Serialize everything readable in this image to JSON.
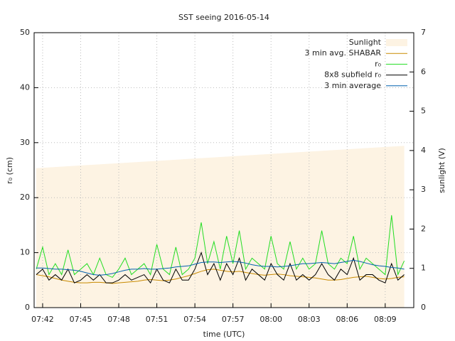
{
  "chart_data": {
    "type": "line",
    "title": "SST seeing 2016-05-14",
    "x_label": "time (UTC)",
    "y_label": "r₀ (cm)",
    "y2_label": "sunlight (V)",
    "xlim": [
      461.33,
      491.25
    ],
    "xticks": [
      {
        "value": 462,
        "label": "07:42"
      },
      {
        "value": 465,
        "label": "07:45"
      },
      {
        "value": 468,
        "label": "07:48"
      },
      {
        "value": 471,
        "label": "07:51"
      },
      {
        "value": 474,
        "label": "07:54"
      },
      {
        "value": 477,
        "label": "07:57"
      },
      {
        "value": 480,
        "label": "08:00"
      },
      {
        "value": 483,
        "label": "08:03"
      },
      {
        "value": 486,
        "label": "08:06"
      },
      {
        "value": 489,
        "label": "08:09"
      }
    ],
    "ylim": [
      0,
      50
    ],
    "yticks": [
      0,
      10,
      20,
      30,
      40,
      50
    ],
    "y2lim": [
      0,
      7
    ],
    "y2ticks": [
      0,
      1,
      2,
      3,
      4,
      5,
      6,
      7
    ],
    "grid": true,
    "legend": "top-right",
    "x": [
      461.5,
      462,
      462.5,
      463,
      463.5,
      464,
      464.5,
      465,
      465.5,
      466,
      466.5,
      467,
      467.5,
      468,
      468.5,
      469,
      469.5,
      470,
      470.5,
      471,
      471.5,
      472,
      472.5,
      473,
      473.5,
      474,
      474.5,
      475,
      475.5,
      476,
      476.5,
      477,
      477.5,
      478,
      478.5,
      479,
      479.5,
      480,
      480.5,
      481,
      481.5,
      482,
      482.5,
      483,
      483.5,
      484,
      484.5,
      485,
      485.5,
      486,
      486.5,
      487,
      487.5,
      488,
      488.5,
      489,
      489.5,
      490,
      490.5
    ],
    "series": [
      {
        "name": "Sunlight",
        "color": "#fdf3e3",
        "style": "area",
        "axis": "y2",
        "x": [
          461.5,
          490.5
        ],
        "values": [
          3.55,
          4.12
        ]
      },
      {
        "name": "3 min avg. SHABAR",
        "color": "#c88a00",
        "values": [
          6.0,
          5.8,
          5.6,
          5.3,
          5.0,
          4.8,
          4.6,
          4.5,
          4.5,
          4.6,
          4.6,
          4.5,
          4.4,
          4.5,
          4.6,
          4.7,
          4.8,
          5.0,
          5.1,
          5.0,
          4.9,
          5.0,
          5.2,
          5.5,
          5.8,
          6.2,
          6.6,
          6.9,
          7.0,
          6.8,
          6.6,
          6.5,
          6.6,
          6.4,
          6.2,
          6.0,
          5.9,
          6.0,
          6.1,
          6.0,
          5.8,
          5.7,
          5.6,
          5.5,
          5.4,
          5.2,
          5.0,
          5.0,
          5.1,
          5.3,
          5.5,
          5.6,
          5.7,
          5.5,
          5.3,
          5.2,
          5.3,
          5.5,
          5.6
        ]
      },
      {
        "name": "r₀",
        "color": "#22dd22",
        "values": [
          7,
          11,
          6,
          8,
          6,
          10.5,
          6,
          7,
          8,
          6,
          9,
          6,
          5.5,
          7,
          9,
          6,
          7,
          8,
          6,
          11.5,
          7,
          6,
          11,
          6,
          7,
          9,
          15.5,
          8,
          12,
          7,
          13,
          8,
          14,
          7,
          9,
          8,
          7,
          13,
          8,
          7,
          12,
          7,
          9,
          7,
          8,
          14,
          8,
          7,
          9,
          8,
          13,
          7,
          9,
          8,
          7,
          6,
          16.8,
          6,
          8.5
        ]
      },
      {
        "name": "8x8 subfield r₀",
        "color": "#000000",
        "values": [
          6,
          7,
          5,
          6,
          5,
          7,
          4.5,
          5,
          6,
          5,
          6,
          4.5,
          4.5,
          5,
          6,
          5,
          5.5,
          6,
          4.5,
          7,
          5,
          4.5,
          7,
          5,
          5,
          7,
          10,
          6,
          8,
          5,
          8,
          6,
          9,
          5,
          7,
          6,
          5,
          8,
          6,
          5,
          8,
          5,
          6,
          5,
          6,
          8,
          6,
          5,
          7,
          6,
          9,
          5,
          6,
          6,
          5,
          4.5,
          8,
          5,
          6
        ]
      },
      {
        "name": "3 min average",
        "color": "#0060ad",
        "values": [
          7.2,
          7.2,
          7.1,
          7.0,
          7.0,
          6.9,
          6.8,
          6.6,
          6.3,
          6.0,
          5.9,
          6.0,
          6.2,
          6.5,
          6.8,
          7.0,
          7.0,
          7.1,
          7.0,
          7.0,
          7.1,
          7.2,
          7.4,
          7.5,
          7.6,
          7.9,
          8.2,
          8.3,
          8.3,
          8.2,
          8.3,
          8.4,
          8.3,
          8.1,
          7.8,
          7.6,
          7.5,
          7.5,
          7.4,
          7.5,
          7.6,
          7.8,
          8.0,
          8.0,
          8.1,
          8.2,
          8.1,
          8.0,
          8.2,
          8.4,
          8.6,
          8.4,
          8.1,
          7.8,
          7.6,
          7.5,
          7.3,
          7.2,
          7.0
        ]
      }
    ]
  }
}
